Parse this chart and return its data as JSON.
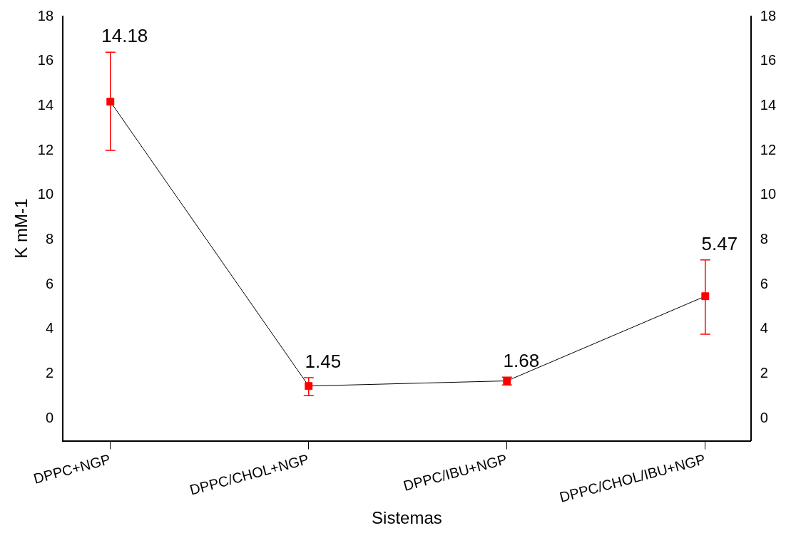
{
  "chart_data": {
    "type": "line",
    "xlabel": "Sistemas",
    "ylabel": "K mM-1",
    "categories": [
      "DPPC+NGP",
      "DPPC/CHOL+NGP",
      "DPPC/IBU+NGP",
      "DPPC/CHOL/IBU+NGP"
    ],
    "series": [
      {
        "color": "#ff0000",
        "values": [
          14.18,
          1.45,
          1.68,
          5.47
        ],
        "errors": [
          [
            12.0,
            16.4
          ],
          [
            1.02,
            1.82
          ],
          [
            1.5,
            1.85
          ],
          [
            3.77,
            7.1
          ]
        ]
      }
    ],
    "ylim": [
      -1,
      18
    ],
    "yticks": [
      0,
      2,
      4,
      6,
      8,
      10,
      12,
      14,
      16,
      18
    ],
    "y2lim": [
      -1,
      18
    ],
    "y2ticks": [
      0,
      2,
      4,
      6,
      8,
      10,
      12,
      14,
      16,
      18
    ],
    "data_labels": true,
    "grid": false,
    "legend": false,
    "marker": "square",
    "line_style": "solid"
  }
}
